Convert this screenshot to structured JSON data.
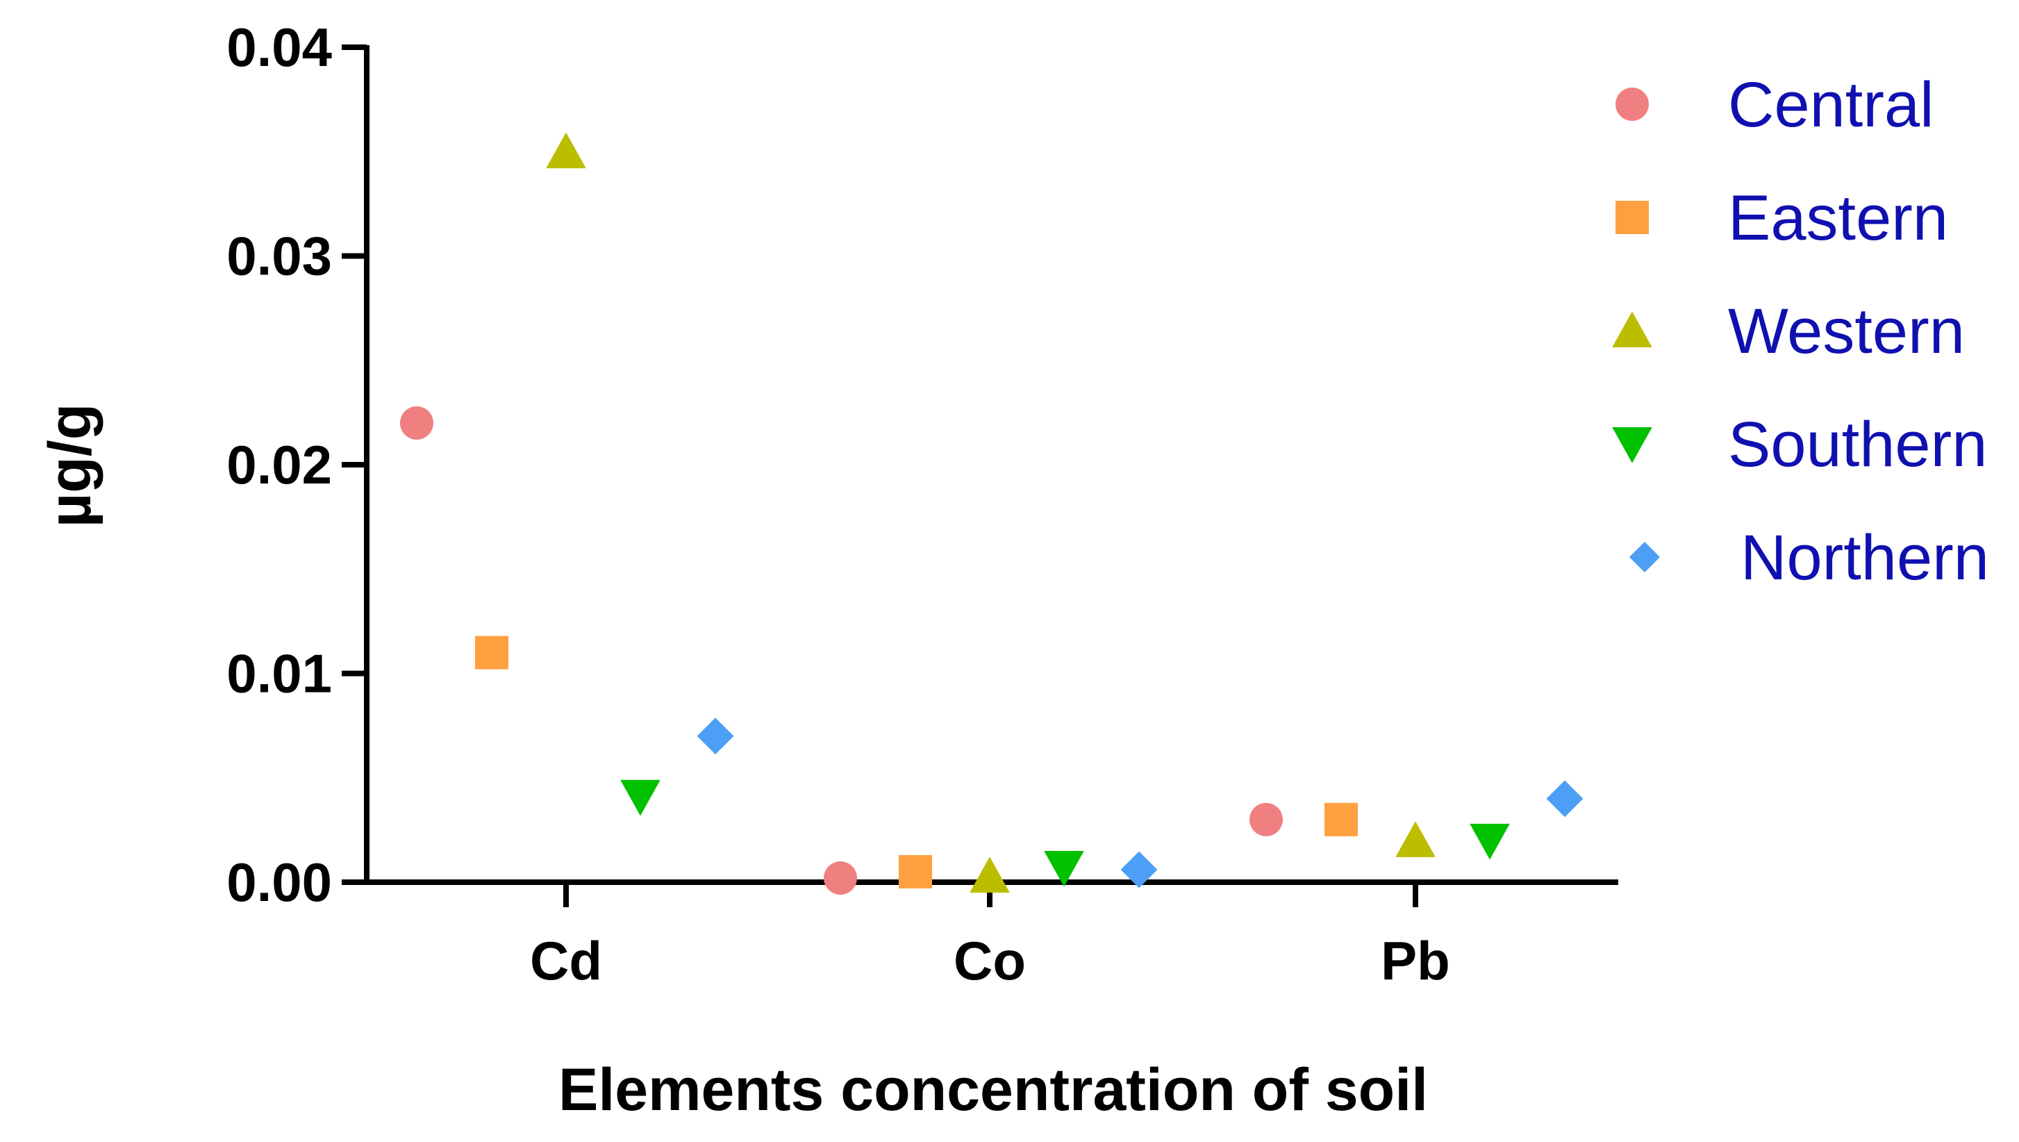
{
  "chart_data": {
    "type": "scatter",
    "categories": [
      "Cd",
      "Co",
      "Pb"
    ],
    "xlabel": "Elements concentration of soil",
    "ylabel": "µg/g",
    "ylim": [
      0,
      0.04
    ],
    "yticks": [
      "0.00",
      "0.01",
      "0.02",
      "0.03",
      "0.04"
    ],
    "ytick_values": [
      0,
      0.01,
      0.02,
      0.03,
      0.04
    ],
    "grid": false,
    "legend_position": "top-right",
    "series": [
      {
        "name": "Central",
        "marker": "circle",
        "color": "#f08080",
        "values": [
          0.022,
          0.0002,
          0.003
        ]
      },
      {
        "name": "Eastern",
        "marker": "square",
        "color": "#ffa040",
        "values": [
          0.011,
          0.0005,
          0.003
        ]
      },
      {
        "name": "Western",
        "marker": "triangle-up",
        "color": "#bdbd00",
        "values": [
          0.035,
          0.0003,
          0.002
        ]
      },
      {
        "name": "Southern",
        "marker": "triangle-down",
        "color": "#00c000",
        "values": [
          0.0041,
          0.0007,
          0.002
        ]
      },
      {
        "name": "Northern",
        "marker": "diamond",
        "color": "#4d9ef5",
        "values": [
          0.007,
          0.0006,
          0.004
        ]
      }
    ]
  }
}
